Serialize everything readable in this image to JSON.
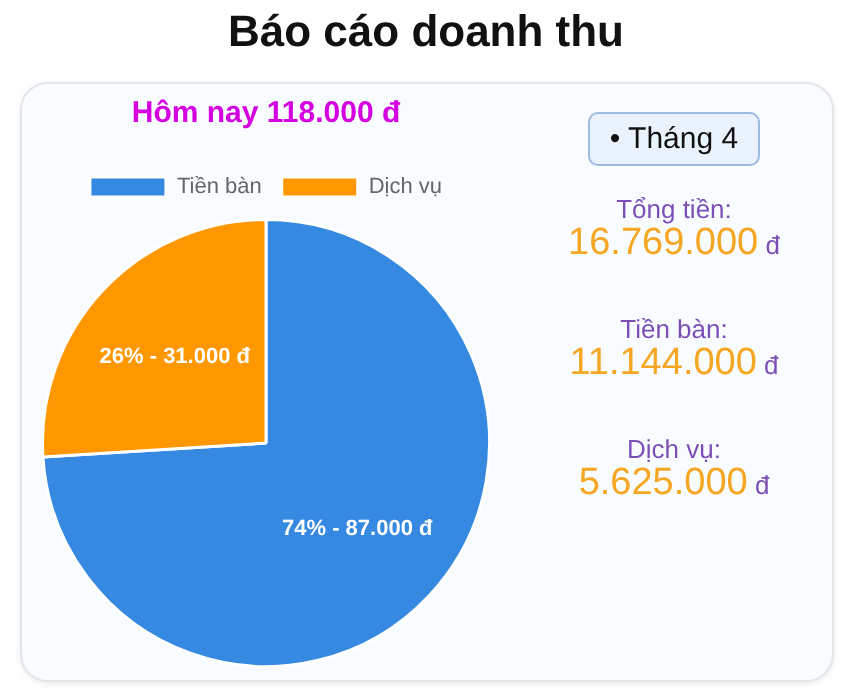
{
  "chart_data": [
    {
      "type": "pie",
      "title": "Báo cáo doanh thu",
      "subtitle": "Hôm nay 118.000 đ",
      "categories": [
        "Tiền bàn",
        "Dịch vụ"
      ],
      "values": [
        74,
        26
      ],
      "colors": [
        "#3589e0",
        "#ff9800"
      ],
      "value_labels": [
        "74% - 87.000 đ",
        "26% - 31.000 đ"
      ],
      "legend": "top"
    },
    {
      "type": "other",
      "title": "• Tháng 4",
      "annotations": [
        "Tổng tiền:",
        "16.769.000 đ",
        "Tiền bàn:",
        "11.144.000 đ",
        "Dịch vụ:",
        "5.625.000 đ"
      ]
    }
  ]
}
